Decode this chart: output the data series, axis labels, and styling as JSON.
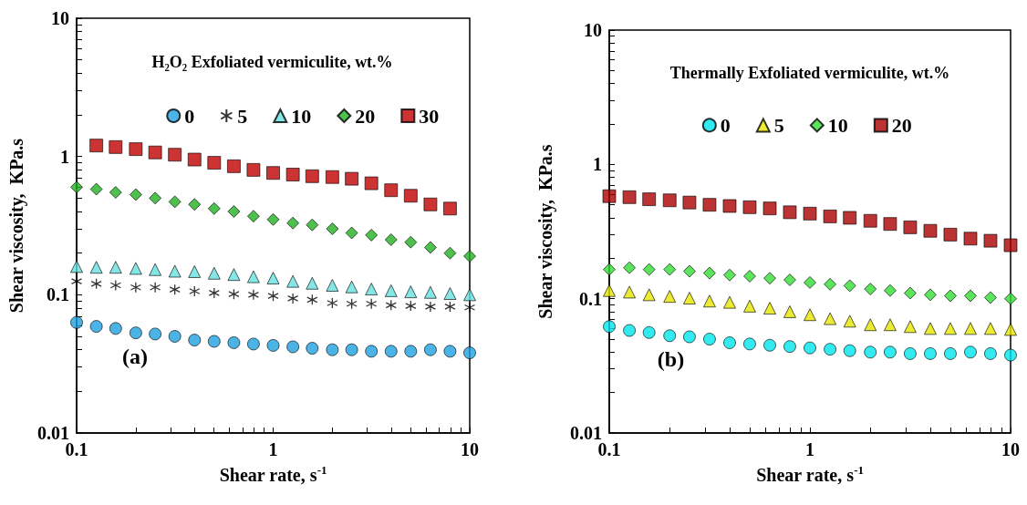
{
  "chart_data": [
    {
      "type": "scatter",
      "xlabel": "Shear rate, s$^{-1}$",
      "ylabel": "Shear viscosity,  KPa.s",
      "legend_title": "H₂O₂ Exfoliated vermiculite, wt.%",
      "annotations": [
        "(a)"
      ],
      "log": "xy",
      "legend": "top",
      "xlim": [
        0.1,
        10
      ],
      "ylim": [
        0.01,
        10
      ],
      "xticks": [
        0.1,
        {
          "value": 0.2,
          "label": null
        },
        {
          "value": 0.3,
          "label": null
        },
        {
          "value": 0.4,
          "label": null
        },
        {
          "value": 0.5,
          "label": null
        },
        {
          "value": 0.6,
          "label": null
        },
        {
          "value": 0.7,
          "label": null
        },
        {
          "value": 0.8,
          "label": null
        },
        {
          "value": 0.9,
          "label": null
        },
        1,
        {
          "value": 2,
          "label": null
        },
        {
          "value": 3,
          "label": null
        },
        {
          "value": 4,
          "label": null
        },
        {
          "value": 5,
          "label": null
        },
        {
          "value": 6,
          "label": null
        },
        {
          "value": 7,
          "label": null
        },
        {
          "value": 8,
          "label": null
        },
        {
          "value": 9,
          "label": null
        },
        10
      ],
      "yticks": [
        0.01,
        {
          "value": 0.02,
          "label": null
        },
        {
          "value": 0.03,
          "label": null
        },
        {
          "value": 0.04,
          "label": null
        },
        {
          "value": 0.05,
          "label": null
        },
        {
          "value": 0.06,
          "label": null
        },
        {
          "value": 0.07,
          "label": null
        },
        {
          "value": 0.08,
          "label": null
        },
        {
          "value": 0.09,
          "label": null
        },
        0.1,
        {
          "value": 0.2,
          "label": null
        },
        {
          "value": 0.3,
          "label": null
        },
        {
          "value": 0.4,
          "label": null
        },
        {
          "value": 0.5,
          "label": null
        },
        {
          "value": 0.6,
          "label": null
        },
        {
          "value": 0.7,
          "label": null
        },
        {
          "value": 0.8,
          "label": null
        },
        {
          "value": 0.9,
          "label": null
        },
        1,
        {
          "value": 2,
          "label": null
        },
        {
          "value": 3,
          "label": null
        },
        {
          "value": 4,
          "label": null
        },
        {
          "value": 5,
          "label": null
        },
        {
          "value": 6,
          "label": null
        },
        {
          "value": 7,
          "label": null
        },
        {
          "value": 8,
          "label": null
        },
        {
          "value": 9,
          "label": null
        },
        10
      ],
      "x": [
        0.1,
        0.126,
        0.158,
        0.2,
        0.251,
        0.316,
        0.398,
        0.501,
        0.631,
        0.794,
        1,
        1.26,
        1.58,
        2,
        2.51,
        3.16,
        3.98,
        5.01,
        6.31,
        7.94,
        10
      ],
      "series": [
        {
          "name": "0",
          "color": "#1ea0e0",
          "marker": "circle",
          "values": [
            0.063,
            0.059,
            0.057,
            0.053,
            0.052,
            0.05,
            0.047,
            0.046,
            0.045,
            0.044,
            0.043,
            0.042,
            0.041,
            0.04,
            0.04,
            0.039,
            0.039,
            0.039,
            0.04,
            0.039,
            0.038
          ]
        },
        {
          "name": "5",
          "color": "#000000",
          "marker": "cross",
          "values": [
            0.125,
            0.12,
            0.117,
            0.113,
            0.113,
            0.109,
            0.106,
            0.103,
            0.101,
            0.1,
            0.098,
            0.094,
            0.092,
            0.087,
            0.086,
            0.086,
            0.084,
            0.083,
            0.082,
            0.082,
            0.081
          ]
        },
        {
          "name": "10",
          "color": "#66e0e0",
          "marker": "triangle",
          "values": [
            0.16,
            0.158,
            0.158,
            0.155,
            0.152,
            0.148,
            0.147,
            0.143,
            0.14,
            0.135,
            0.132,
            0.125,
            0.121,
            0.117,
            0.114,
            0.11,
            0.107,
            0.105,
            0.104,
            0.102,
            0.1
          ]
        },
        {
          "name": "20",
          "color": "#22b022",
          "marker": "diamond",
          "values": [
            0.6,
            0.58,
            0.55,
            0.53,
            0.5,
            0.47,
            0.45,
            0.42,
            0.4,
            0.37,
            0.35,
            0.33,
            0.32,
            0.3,
            0.28,
            0.27,
            0.25,
            0.24,
            0.22,
            0.2,
            0.19
          ]
        },
        {
          "name": "30",
          "color": "#c00000",
          "marker": "square",
          "x": [
            0.126,
            0.158,
            0.2,
            0.251,
            0.316,
            0.398,
            0.501,
            0.631,
            0.794,
            1,
            1.26,
            1.58,
            2,
            2.51,
            3.16,
            3.98,
            5.01,
            6.31,
            7.94
          ],
          "values": [
            1.2,
            1.17,
            1.13,
            1.07,
            1.03,
            0.95,
            0.9,
            0.85,
            0.8,
            0.76,
            0.74,
            0.72,
            0.71,
            0.69,
            0.64,
            0.57,
            0.52,
            0.45,
            0.42
          ]
        }
      ]
    },
    {
      "type": "scatter",
      "xlabel": "Shear rate, s$^{-1}$",
      "ylabel": "Shear viscosity,  KPa.s",
      "legend_title": "Thermally Exfoliated vermiculite, wt.%",
      "annotations": [
        "(b)"
      ],
      "log": "xy",
      "legend": "top",
      "xlim": [
        0.1,
        10
      ],
      "ylim": [
        0.01,
        10
      ],
      "xticks": [
        0.1,
        {
          "value": 0.2,
          "label": null
        },
        {
          "value": 0.3,
          "label": null
        },
        {
          "value": 0.4,
          "label": null
        },
        {
          "value": 0.5,
          "label": null
        },
        {
          "value": 0.6,
          "label": null
        },
        {
          "value": 0.7,
          "label": null
        },
        {
          "value": 0.8,
          "label": null
        },
        {
          "value": 0.9,
          "label": null
        },
        1,
        {
          "value": 2,
          "label": null
        },
        {
          "value": 3,
          "label": null
        },
        {
          "value": 4,
          "label": null
        },
        {
          "value": 5,
          "label": null
        },
        {
          "value": 6,
          "label": null
        },
        {
          "value": 7,
          "label": null
        },
        {
          "value": 8,
          "label": null
        },
        {
          "value": 9,
          "label": null
        },
        10
      ],
      "yticks": [
        0.01,
        {
          "value": 0.02,
          "label": null
        },
        {
          "value": 0.03,
          "label": null
        },
        {
          "value": 0.04,
          "label": null
        },
        {
          "value": 0.05,
          "label": null
        },
        {
          "value": 0.06,
          "label": null
        },
        {
          "value": 0.07,
          "label": null
        },
        {
          "value": 0.08,
          "label": null
        },
        {
          "value": 0.09,
          "label": null
        },
        0.1,
        {
          "value": 0.2,
          "label": null
        },
        {
          "value": 0.3,
          "label": null
        },
        {
          "value": 0.4,
          "label": null
        },
        {
          "value": 0.5,
          "label": null
        },
        {
          "value": 0.6,
          "label": null
        },
        {
          "value": 0.7,
          "label": null
        },
        {
          "value": 0.8,
          "label": null
        },
        {
          "value": 0.9,
          "label": null
        },
        1,
        {
          "value": 2,
          "label": null
        },
        {
          "value": 3,
          "label": null
        },
        {
          "value": 4,
          "label": null
        },
        {
          "value": 5,
          "label": null
        },
        {
          "value": 6,
          "label": null
        },
        {
          "value": 7,
          "label": null
        },
        {
          "value": 8,
          "label": null
        },
        {
          "value": 9,
          "label": null
        },
        10
      ],
      "x": [
        0.1,
        0.126,
        0.158,
        0.2,
        0.251,
        0.316,
        0.398,
        0.501,
        0.631,
        0.794,
        1,
        1.26,
        1.58,
        2,
        2.51,
        3.16,
        3.98,
        5.01,
        6.31,
        7.94,
        10
      ],
      "series": [
        {
          "name": "0",
          "color": "#00e5ee",
          "marker": "circle",
          "values": [
            0.062,
            0.058,
            0.056,
            0.053,
            0.052,
            0.05,
            0.047,
            0.046,
            0.045,
            0.044,
            0.043,
            0.042,
            0.041,
            0.04,
            0.04,
            0.039,
            0.039,
            0.039,
            0.04,
            0.039,
            0.038
          ]
        },
        {
          "name": "5",
          "color": "#e6e600",
          "marker": "triangle",
          "values": [
            0.115,
            0.112,
            0.107,
            0.104,
            0.101,
            0.096,
            0.094,
            0.088,
            0.085,
            0.08,
            0.076,
            0.071,
            0.068,
            0.064,
            0.064,
            0.062,
            0.06,
            0.06,
            0.06,
            0.06,
            0.059
          ]
        },
        {
          "name": "10",
          "color": "#33dd33",
          "marker": "diamond",
          "values": [
            0.165,
            0.17,
            0.165,
            0.165,
            0.16,
            0.155,
            0.15,
            0.147,
            0.142,
            0.138,
            0.132,
            0.128,
            0.125,
            0.118,
            0.115,
            0.11,
            0.107,
            0.105,
            0.105,
            0.102,
            0.1
          ]
        },
        {
          "name": "20",
          "color": "#aa0000",
          "marker": "square",
          "values": [
            0.58,
            0.57,
            0.55,
            0.54,
            0.52,
            0.5,
            0.49,
            0.48,
            0.47,
            0.44,
            0.43,
            0.41,
            0.4,
            0.38,
            0.36,
            0.34,
            0.32,
            0.3,
            0.28,
            0.27,
            0.25
          ]
        }
      ]
    }
  ]
}
